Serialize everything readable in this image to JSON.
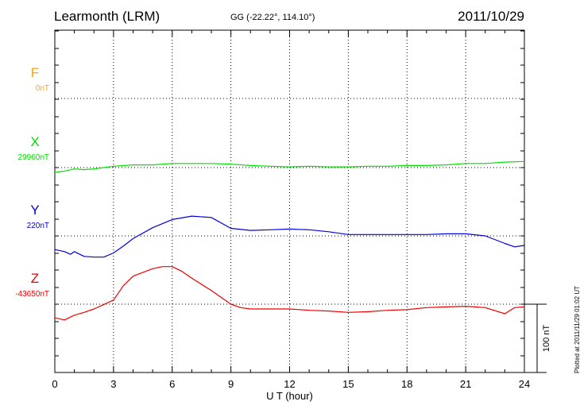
{
  "header": {
    "station": "Learmonth (LRM)",
    "coordinates": "GG (-22.22°, 114.10°)",
    "date": "2011/10/29"
  },
  "plotted_note": "Plotted at 2011/11/29 01:02 UT",
  "chart_data": {
    "type": "line",
    "xlabel": "U T (hour)",
    "xlim": [
      0,
      24
    ],
    "x_ticks": [
      "0",
      "3",
      "6",
      "9",
      "12",
      "15",
      "18",
      "21",
      "24"
    ],
    "scale_bar_label": "100 nT",
    "scale_bar_nT": 100,
    "grid": true,
    "series": [
      {
        "name": "F",
        "baseline_label": "0nT",
        "color": "#ffa500",
        "x": [],
        "offset_nT": []
      },
      {
        "name": "X",
        "baseline_label": "29960nT",
        "color": "#00e000",
        "x": [
          0,
          0.5,
          1,
          1.5,
          2,
          3,
          4,
          5,
          6,
          7,
          8,
          9,
          10,
          11,
          12,
          13,
          14,
          15,
          16,
          17,
          18,
          19,
          20,
          21,
          22,
          23,
          24
        ],
        "offset_nT": [
          -7,
          -5,
          -2,
          -3,
          -2,
          2,
          4,
          4,
          6,
          6,
          6,
          5,
          3,
          2,
          1,
          2,
          1,
          1,
          2,
          2,
          3,
          3,
          4,
          6,
          6,
          8,
          9
        ]
      },
      {
        "name": "Y",
        "baseline_label": "220nT",
        "color": "#0000dd",
        "x": [
          0,
          0.5,
          0.8,
          1,
          1.5,
          2,
          2.5,
          3,
          3.5,
          4,
          5,
          6,
          7,
          8,
          9,
          10,
          11,
          12,
          13,
          14,
          15,
          16,
          17,
          18,
          19,
          20,
          21,
          22,
          23,
          23.5,
          24
        ],
        "offset_nT": [
          -20,
          -23,
          -27,
          -23,
          -30,
          -31,
          -31,
          -25,
          -15,
          -4,
          12,
          24,
          29,
          27,
          11,
          8,
          9,
          10,
          9,
          6,
          2,
          2,
          2,
          2,
          2,
          3,
          3,
          0,
          -11,
          -16,
          -14
        ]
      },
      {
        "name": "Z",
        "baseline_label": "-43650nT",
        "color": "#ee0000",
        "x": [
          0,
          0.5,
          1,
          1.5,
          2,
          3,
          3.5,
          4,
          5,
          5.5,
          6,
          6.5,
          7,
          8,
          9,
          9.5,
          10,
          11,
          12,
          13,
          14,
          15,
          16,
          17,
          18,
          19,
          20,
          21,
          22,
          23,
          23.5,
          24
        ],
        "offset_nT": [
          -20,
          -23,
          -16,
          -12,
          -7,
          6,
          27,
          41,
          52,
          55,
          55,
          48,
          38,
          20,
          0,
          -5,
          -7,
          -7,
          -7,
          -9,
          -10,
          -12,
          -11,
          -9,
          -8,
          -5,
          -4,
          -3,
          -5,
          -14,
          -5,
          -4
        ]
      }
    ]
  }
}
